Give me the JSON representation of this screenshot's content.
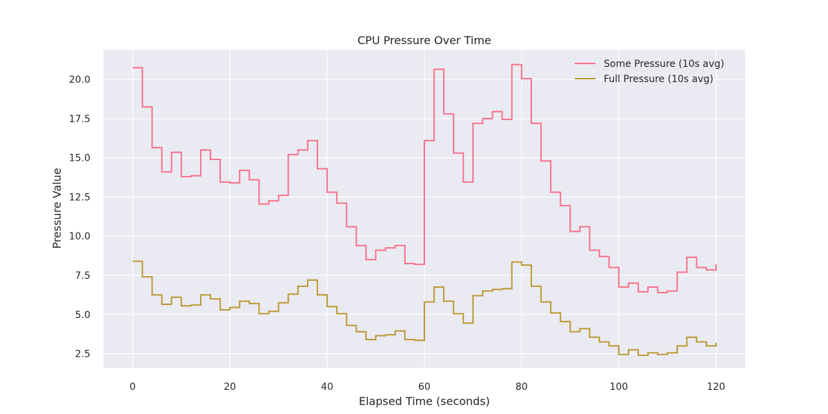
{
  "chart_data": {
    "type": "line",
    "title": "CPU Pressure Over Time",
    "xlabel": "Elapsed Time (seconds)",
    "ylabel": "Pressure Value",
    "xlim": [
      -6,
      126
    ],
    "ylim": [
      1.6,
      21.9
    ],
    "xticks": [
      0,
      20,
      40,
      60,
      80,
      100,
      120
    ],
    "yticks": [
      2.5,
      5.0,
      7.5,
      10.0,
      12.5,
      15.0,
      17.5,
      20.0
    ],
    "ytick_labels": [
      "2.5",
      "5.0",
      "7.5",
      "10.0",
      "12.5",
      "15.0",
      "17.5",
      "20.0"
    ],
    "grid": true,
    "legend_position": "top-right",
    "step": "post",
    "x": [
      0,
      2,
      4,
      6,
      8,
      10,
      12,
      14,
      16,
      18,
      20,
      22,
      24,
      26,
      28,
      30,
      32,
      34,
      36,
      38,
      40,
      42,
      44,
      46,
      48,
      50,
      52,
      54,
      56,
      58,
      60,
      62,
      64,
      66,
      68,
      70,
      72,
      74,
      76,
      78,
      80,
      82,
      84,
      86,
      88,
      90,
      92,
      94,
      96,
      98,
      100,
      102,
      104,
      106,
      108,
      110,
      112,
      114,
      116,
      118,
      120
    ],
    "series": [
      {
        "name": "Some Pressure (10s avg)",
        "color": "#f77189",
        "values": [
          20.75,
          18.25,
          15.65,
          14.1,
          15.35,
          13.8,
          13.85,
          15.5,
          14.9,
          13.45,
          13.4,
          14.2,
          13.6,
          12.05,
          12.25,
          12.6,
          15.2,
          15.5,
          16.1,
          14.3,
          12.8,
          12.1,
          10.6,
          9.4,
          8.5,
          9.1,
          9.25,
          9.4,
          8.25,
          8.2,
          16.1,
          20.65,
          17.8,
          15.3,
          13.45,
          17.2,
          17.5,
          17.95,
          17.45,
          20.95,
          20.05,
          17.2,
          14.8,
          12.8,
          11.95,
          10.3,
          10.6,
          9.1,
          8.7,
          8.0,
          6.75,
          7.0,
          6.45,
          6.75,
          6.4,
          6.5,
          7.7,
          8.65,
          8.0,
          7.85,
          8.2
        ]
      },
      {
        "name": "Full Pressure (10s avg)",
        "color": "#bb9832",
        "values": [
          8.4,
          7.4,
          6.25,
          5.65,
          6.1,
          5.55,
          5.6,
          6.25,
          6.0,
          5.3,
          5.45,
          5.85,
          5.7,
          5.05,
          5.2,
          5.75,
          6.3,
          6.8,
          7.2,
          6.25,
          5.5,
          5.05,
          4.3,
          3.9,
          3.4,
          3.65,
          3.7,
          3.95,
          3.4,
          3.35,
          5.8,
          6.75,
          5.85,
          5.05,
          4.45,
          6.2,
          6.5,
          6.6,
          6.65,
          8.35,
          8.15,
          6.8,
          5.8,
          5.1,
          4.55,
          3.9,
          4.1,
          3.55,
          3.25,
          3.0,
          2.45,
          2.75,
          2.4,
          2.55,
          2.45,
          2.55,
          3.0,
          3.55,
          3.25,
          3.0,
          3.2
        ]
      }
    ]
  }
}
